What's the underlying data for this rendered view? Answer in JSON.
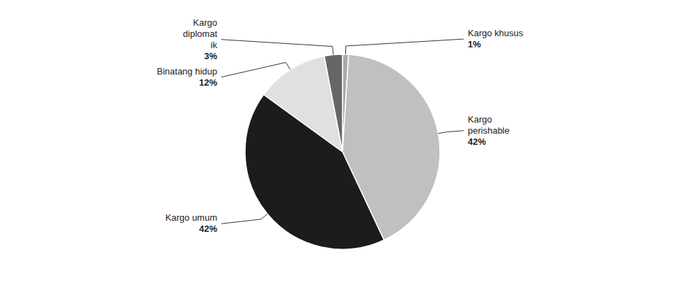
{
  "chart_data": {
    "type": "pie",
    "categories": [
      "Kargo khusus",
      "Kargo\nperishable",
      "Kargo umum",
      "Binatang hidup",
      "Kargo\ndiplomat\nik"
    ],
    "values": [
      1,
      42,
      42,
      12,
      3
    ],
    "value_labels": [
      "1%",
      "42%",
      "42%",
      "12%",
      "3%"
    ],
    "colors": [
      "#aaaaaa",
      "#c0c0c0",
      "#1c1c1c",
      "#e0e0e0",
      "#666666"
    ],
    "data_labels": true
  }
}
